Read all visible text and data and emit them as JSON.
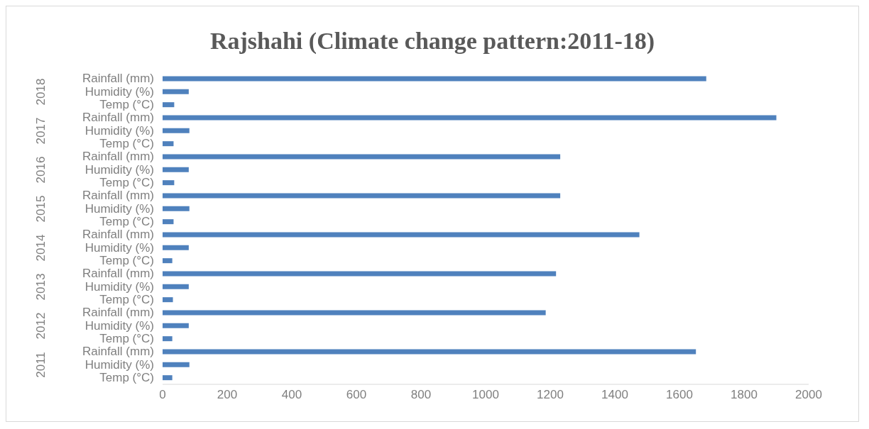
{
  "chart_data": {
    "type": "bar",
    "orientation": "horizontal",
    "title": "Rajshahi (Climate change pattern:2011-18)",
    "categories": [
      "Rainfall (mm)",
      "Humidity (%)",
      "Temp (°C)",
      "Rainfall (mm)",
      "Humidity (%)",
      "Temp (°C)",
      "Rainfall (mm)",
      "Humidity (%)",
      "Temp (°C)",
      "Rainfall (mm)",
      "Humidity (%)",
      "Temp (°C)",
      "Rainfall (mm)",
      "Humidity (%)",
      "Temp (°C)",
      "Rainfall (mm)",
      "Humidity (%)",
      "Temp (°C)",
      "Rainfall (mm)",
      "Humidity (%)",
      "Temp (°C)",
      "Rainfall (mm)",
      "Humidity (%)",
      "Temp (°C)"
    ],
    "values": [
      1683,
      81,
      36,
      1900,
      83,
      34,
      1231,
      81,
      36,
      1231,
      83,
      34,
      1476,
      81,
      30,
      1218,
      81,
      32,
      1186,
      81,
      30,
      1651,
      83,
      30
    ],
    "color": "#4f81bd",
    "annotations": [
      "2018",
      "2017",
      "2016",
      "2015",
      "2014",
      "2013",
      "2012",
      "2011"
    ],
    "xlim": [
      0,
      2000
    ],
    "xticks": [
      0,
      200,
      400,
      600,
      800,
      1000,
      1200,
      1400,
      1600,
      1800,
      2000
    ],
    "grid": false,
    "legend": false
  }
}
